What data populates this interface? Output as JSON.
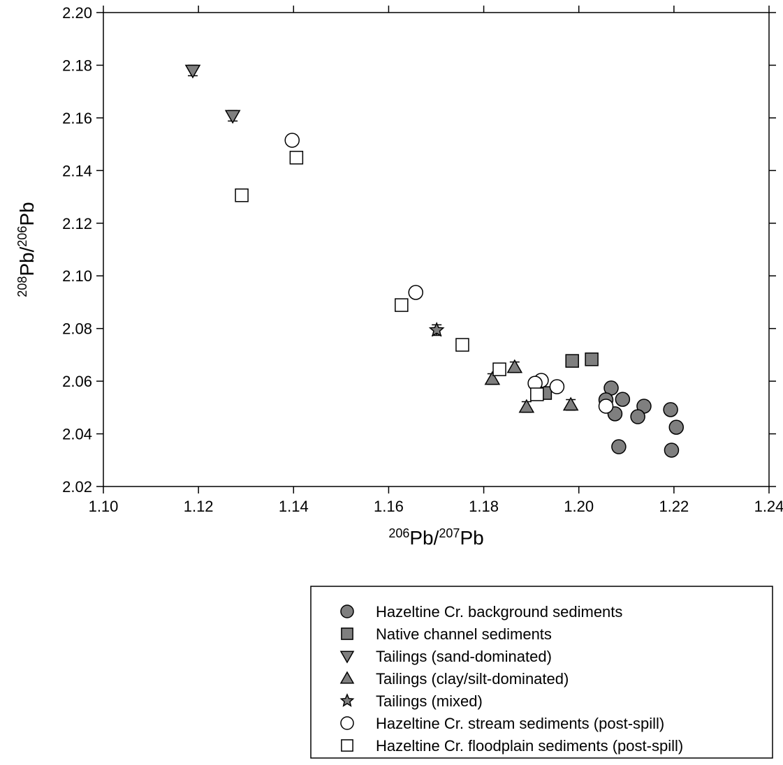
{
  "chart_data": {
    "type": "scatter",
    "xlabel": [
      "206",
      "Pb/",
      "207",
      "Pb"
    ],
    "ylabel": [
      "208",
      "Pb/",
      "206",
      "Pb"
    ],
    "xlim": [
      1.1,
      1.24
    ],
    "ylim": [
      2.02,
      2.2
    ],
    "xticks": [
      {
        "value": 1.1,
        "label": "1.10"
      },
      1.12,
      1.14,
      1.16,
      1.18,
      {
        "value": 1.2,
        "label": "1.20"
      },
      1.22,
      1.24
    ],
    "yticks": [
      2.02,
      2.04,
      2.06,
      2.08,
      {
        "value": 2.1,
        "label": "2.10"
      },
      2.12,
      2.14,
      2.16,
      2.18,
      {
        "value": 2.2,
        "label": "2.20"
      }
    ],
    "series": [
      {
        "name": "Hazeltine Cr. background sediments",
        "marker": "circle",
        "color": "#7f7f7f",
        "x": [
          1.2193,
          1.2205,
          1.2195,
          1.2137,
          1.2124,
          1.2092,
          1.2068,
          1.2076,
          1.2057,
          1.2084
        ],
        "values": [
          2.0492,
          2.0425,
          2.0338,
          2.0505,
          2.0465,
          2.0531,
          2.0574,
          2.0476,
          2.0529,
          2.0351
        ],
        "errors": [
          0.002,
          0.002,
          0.002,
          0.002,
          0.002,
          0.002,
          0.002,
          0.002,
          0.002,
          0.002
        ]
      },
      {
        "name": "Native channel sediments",
        "marker": "square",
        "color": "#7f7f7f",
        "x": [
          1.1986,
          1.2027,
          1.1929
        ],
        "values": [
          2.0677,
          2.0683,
          2.0555
        ],
        "errors": [
          0.002,
          0.002,
          0.002
        ]
      },
      {
        "name": "Tailings (sand-dominated)",
        "marker": "triangle-down",
        "color": "#7f7f7f",
        "x": [
          1.1188,
          1.1272
        ],
        "values": [
          2.178,
          2.1608
        ],
        "errors": [
          0.002,
          0.002
        ]
      },
      {
        "name": "Tailings (clay/silt-dominated)",
        "marker": "triangle-up",
        "color": "#7f7f7f",
        "x": [
          1.1818,
          1.1865,
          1.189,
          1.1983
        ],
        "values": [
          2.0608,
          2.0653,
          2.0502,
          2.051
        ],
        "errors": [
          0.002,
          0.002,
          0.002,
          0.002
        ]
      },
      {
        "name": "Tailings (mixed)",
        "marker": "star",
        "color": "#7f7f7f",
        "x": [
          1.1701
        ],
        "values": [
          2.0794
        ],
        "errors": [
          0.002
        ]
      },
      {
        "name": "Hazeltine Cr. stream sediments (post-spill)",
        "marker": "circle",
        "color": "#ffffff",
        "x": [
          1.1397,
          1.1657,
          1.1921,
          1.1908,
          1.1954,
          1.2057
        ],
        "values": [
          2.1515,
          2.0937,
          2.0603,
          2.0592,
          2.0579,
          2.0505
        ],
        "errors": [
          0.002,
          0.002,
          0.002,
          0.002,
          0.002,
          0.002
        ]
      },
      {
        "name": "Hazeltine Cr. floodplain sediments (post-spill)",
        "marker": "square",
        "color": "#ffffff",
        "x": [
          1.1406,
          1.1291,
          1.1627,
          1.1755,
          1.1833,
          1.1912
        ],
        "values": [
          2.1449,
          2.1306,
          2.0889,
          2.0738,
          2.0645,
          2.055
        ],
        "errors": [
          0.002,
          0.002,
          0.002,
          0.002,
          0.002,
          0.002
        ]
      }
    ]
  }
}
